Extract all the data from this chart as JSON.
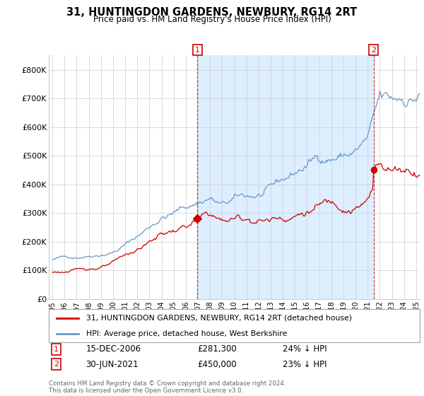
{
  "title": "31, HUNTINGDON GARDENS, NEWBURY, RG14 2RT",
  "subtitle": "Price paid vs. HM Land Registry's House Price Index (HPI)",
  "footer": "Contains HM Land Registry data © Crown copyright and database right 2024.\nThis data is licensed under the Open Government Licence v3.0.",
  "legend_line1": "31, HUNTINGDON GARDENS, NEWBURY, RG14 2RT (detached house)",
  "legend_line2": "HPI: Average price, detached house, West Berkshire",
  "annotation1_label": "1",
  "annotation1_date": "15-DEC-2006",
  "annotation1_price": "£281,300",
  "annotation1_hpi": "24% ↓ HPI",
  "annotation2_label": "2",
  "annotation2_date": "30-JUN-2021",
  "annotation2_price": "£450,000",
  "annotation2_hpi": "23% ↓ HPI",
  "red_color": "#cc0000",
  "blue_color": "#6699cc",
  "shade_color": "#ddeeff",
  "background_color": "#ffffff",
  "ylim": [
    0,
    850000
  ],
  "yticks": [
    0,
    100000,
    200000,
    300000,
    400000,
    500000,
    600000,
    700000,
    800000
  ],
  "ytick_labels": [
    "£0",
    "£100K",
    "£200K",
    "£300K",
    "£400K",
    "£500K",
    "£600K",
    "£700K",
    "£800K"
  ],
  "sale1_x": 2006.958,
  "sale1_y": 281300,
  "sale2_x": 2021.5,
  "sale2_y": 450000,
  "xlim_left": 1994.7,
  "xlim_right": 2025.3
}
